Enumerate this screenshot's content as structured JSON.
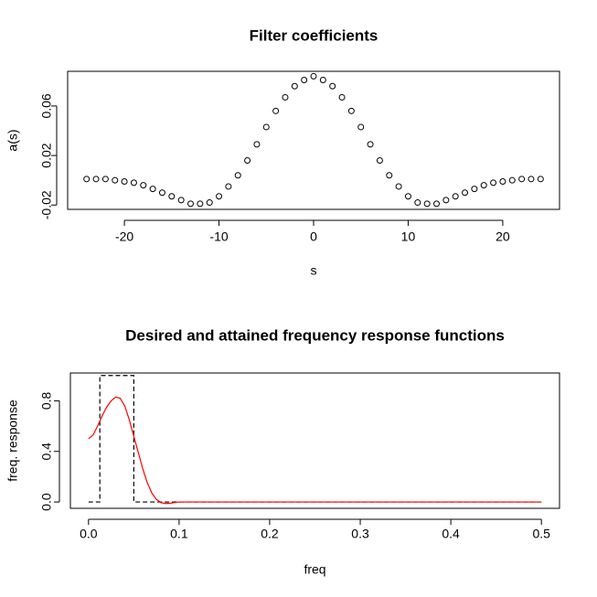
{
  "chart_data": [
    {
      "type": "scatter",
      "title": "Filter coefficients",
      "xlabel": "s",
      "ylabel": "a(s)",
      "x": [
        -24,
        -23,
        -22,
        -21,
        -20,
        -19,
        -18,
        -17,
        -16,
        -15,
        -14,
        -13,
        -12,
        -11,
        -10,
        -9,
        -8,
        -7,
        -6,
        -5,
        -4,
        -3,
        -2,
        -1,
        0,
        1,
        2,
        3,
        4,
        5,
        6,
        7,
        8,
        9,
        10,
        11,
        12,
        13,
        14,
        15,
        16,
        17,
        18,
        19,
        20,
        21,
        22,
        23,
        24
      ],
      "values": [
        0.001,
        0.001,
        0.001,
        0,
        -0.001,
        -0.002,
        -0.004,
        -0.007,
        -0.01,
        -0.013,
        -0.016,
        -0.019,
        -0.019,
        -0.018,
        -0.013,
        -0.005,
        0.004,
        0.016,
        0.029,
        0.043,
        0.056,
        0.067,
        0.076,
        0.081,
        0.084,
        0.081,
        0.076,
        0.067,
        0.056,
        0.043,
        0.029,
        0.016,
        0.004,
        -0.005,
        -0.013,
        -0.018,
        -0.019,
        -0.019,
        -0.016,
        -0.013,
        -0.01,
        -0.007,
        -0.004,
        -0.002,
        -0.001,
        0,
        0.001,
        0.001,
        0.001
      ],
      "color": "#000000",
      "xlim": [
        -26,
        26
      ],
      "xticks": [
        -20,
        -10,
        0,
        10,
        20
      ],
      "ylim": [
        -0.0235,
        0.088
      ],
      "yticks": [
        -0.02,
        0.02,
        0.06
      ]
    },
    {
      "type": "line",
      "title": "Desired and attained frequency response functions",
      "xlabel": "freq",
      "ylabel": "freq. response",
      "series": [
        {
          "color": "#000000",
          "style": "dashed",
          "x": [
            0,
            0.0125,
            0.0125,
            0.05,
            0.05,
            0.5
          ],
          "values": [
            0,
            0,
            1,
            1,
            0,
            0
          ]
        },
        {
          "color": "#ff0000",
          "style": "solid",
          "x": [
            0,
            0.005,
            0.01,
            0.015,
            0.02,
            0.025,
            0.03,
            0.035,
            0.04,
            0.045,
            0.05,
            0.055,
            0.06,
            0.065,
            0.07,
            0.075,
            0.08,
            0.085,
            0.09,
            0.095,
            0.1,
            0.5
          ],
          "values": [
            0.5,
            0.53,
            0.6,
            0.68,
            0.75,
            0.8,
            0.83,
            0.82,
            0.76,
            0.65,
            0.52,
            0.39,
            0.26,
            0.15,
            0.07,
            0.02,
            -0.005,
            -0.012,
            -0.01,
            -0.004,
            0,
            0
          ]
        }
      ],
      "xlim": [
        -0.02,
        0.52
      ],
      "xticks": [
        {
          "value": 0,
          "label": "0.0"
        },
        0.1,
        0.2,
        0.3,
        0.4,
        0.5
      ],
      "ylim": [
        -0.05,
        1.02
      ],
      "yticks": [
        {
          "value": 0,
          "label": "0.0"
        },
        0.4,
        0.8
      ]
    }
  ]
}
